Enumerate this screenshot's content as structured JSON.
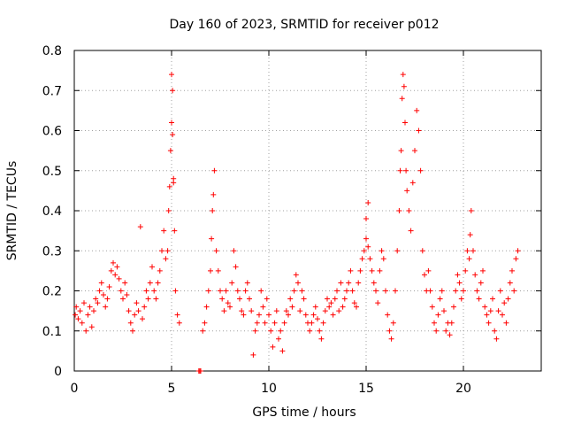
{
  "chart_data": {
    "type": "scatter",
    "title": "Day 160 of 2023, SRMTID for receiver p012",
    "xlabel": "GPS time / hours",
    "ylabel": "SRMTID / TECUs",
    "xlim": [
      0,
      24
    ],
    "ylim": [
      0,
      0.8
    ],
    "xticks": [
      0,
      5,
      10,
      15,
      20
    ],
    "xtick_labels": [
      "0",
      "5",
      "10",
      "15",
      "20"
    ],
    "yticks": [
      0,
      0.1,
      0.2,
      0.3,
      0.4,
      0.5,
      0.6,
      0.7,
      0.8
    ],
    "ytick_labels": [
      "0",
      "0.1",
      "0.2",
      "0.3",
      "0.4",
      "0.5",
      "0.6",
      "0.7",
      "0.8"
    ],
    "grid": true,
    "marker": "+",
    "color": "#ff0000",
    "x": [
      0.05,
      0.1,
      0.2,
      0.3,
      0.4,
      0.5,
      0.6,
      0.7,
      0.8,
      0.9,
      1.0,
      1.1,
      1.2,
      1.3,
      1.4,
      1.5,
      1.6,
      1.7,
      1.8,
      1.9,
      2.0,
      2.1,
      2.2,
      2.3,
      2.4,
      2.5,
      2.6,
      2.7,
      2.8,
      2.9,
      3.0,
      3.1,
      3.2,
      3.3,
      3.4,
      3.5,
      3.6,
      3.7,
      3.8,
      3.9,
      4.0,
      4.1,
      4.2,
      4.3,
      4.4,
      4.5,
      4.6,
      4.7,
      4.8,
      4.85,
      4.9,
      4.95,
      5.0,
      5.0,
      5.05,
      5.05,
      5.1,
      5.1,
      5.15,
      5.2,
      5.3,
      5.4,
      6.4,
      6.45,
      6.5,
      6.6,
      6.7,
      6.8,
      6.9,
      7.0,
      7.05,
      7.1,
      7.15,
      7.2,
      7.3,
      7.4,
      7.5,
      7.6,
      7.7,
      7.8,
      7.9,
      8.0,
      8.1,
      8.2,
      8.3,
      8.4,
      8.5,
      8.6,
      8.7,
      8.8,
      8.9,
      9.0,
      9.1,
      9.2,
      9.3,
      9.4,
      9.5,
      9.6,
      9.7,
      9.8,
      9.9,
      10.0,
      10.1,
      10.2,
      10.3,
      10.4,
      10.5,
      10.6,
      10.7,
      10.8,
      10.9,
      11.0,
      11.1,
      11.2,
      11.3,
      11.4,
      11.5,
      11.6,
      11.7,
      11.8,
      11.9,
      12.0,
      12.1,
      12.2,
      12.3,
      12.4,
      12.5,
      12.6,
      12.7,
      12.8,
      12.9,
      13.0,
      13.1,
      13.2,
      13.3,
      13.4,
      13.5,
      13.6,
      13.7,
      13.8,
      13.9,
      14.0,
      14.1,
      14.2,
      14.3,
      14.4,
      14.5,
      14.6,
      14.7,
      14.8,
      14.9,
      15.0,
      15.0,
      15.1,
      15.1,
      15.2,
      15.3,
      15.4,
      15.5,
      15.6,
      15.7,
      15.8,
      15.9,
      16.0,
      16.1,
      16.2,
      16.3,
      16.4,
      16.5,
      16.6,
      16.7,
      16.75,
      16.8,
      16.85,
      16.9,
      16.95,
      17.0,
      17.05,
      17.1,
      17.2,
      17.3,
      17.4,
      17.5,
      17.6,
      17.7,
      17.8,
      17.9,
      18.0,
      18.1,
      18.2,
      18.3,
      18.4,
      18.5,
      18.6,
      18.7,
      18.8,
      18.9,
      19.0,
      19.1,
      19.2,
      19.3,
      19.4,
      19.5,
      19.6,
      19.7,
      19.8,
      19.9,
      20.0,
      20.1,
      20.2,
      20.3,
      20.35,
      20.4,
      20.5,
      20.6,
      20.7,
      20.8,
      20.9,
      21.0,
      21.1,
      21.2,
      21.3,
      21.4,
      21.5,
      21.6,
      21.7,
      21.8,
      21.9,
      22.0,
      22.1,
      22.2,
      22.3,
      22.4,
      22.5,
      22.6,
      22.7,
      22.8
    ],
    "y": [
      0.14,
      0.16,
      0.13,
      0.15,
      0.12,
      0.17,
      0.1,
      0.14,
      0.16,
      0.11,
      0.15,
      0.18,
      0.17,
      0.2,
      0.22,
      0.19,
      0.16,
      0.18,
      0.21,
      0.25,
      0.27,
      0.24,
      0.26,
      0.23,
      0.2,
      0.18,
      0.22,
      0.19,
      0.15,
      0.12,
      0.1,
      0.14,
      0.17,
      0.15,
      0.36,
      0.13,
      0.16,
      0.2,
      0.18,
      0.22,
      0.26,
      0.2,
      0.18,
      0.22,
      0.25,
      0.3,
      0.35,
      0.28,
      0.3,
      0.4,
      0.46,
      0.55,
      0.62,
      0.74,
      0.7,
      0.59,
      0.47,
      0.48,
      0.35,
      0.2,
      0.14,
      0.12,
      0.0,
      0.0,
      0.0,
      0.1,
      0.12,
      0.16,
      0.2,
      0.25,
      0.33,
      0.4,
      0.44,
      0.5,
      0.3,
      0.25,
      0.2,
      0.18,
      0.15,
      0.2,
      0.17,
      0.16,
      0.22,
      0.3,
      0.26,
      0.2,
      0.18,
      0.15,
      0.14,
      0.2,
      0.22,
      0.18,
      0.15,
      0.04,
      0.1,
      0.12,
      0.14,
      0.2,
      0.16,
      0.12,
      0.18,
      0.14,
      0.1,
      0.06,
      0.12,
      0.15,
      0.08,
      0.1,
      0.05,
      0.12,
      0.15,
      0.14,
      0.18,
      0.16,
      0.2,
      0.24,
      0.22,
      0.15,
      0.2,
      0.18,
      0.14,
      0.12,
      0.1,
      0.12,
      0.14,
      0.16,
      0.13,
      0.1,
      0.08,
      0.12,
      0.15,
      0.18,
      0.16,
      0.17,
      0.14,
      0.18,
      0.2,
      0.15,
      0.22,
      0.16,
      0.18,
      0.2,
      0.22,
      0.25,
      0.2,
      0.17,
      0.16,
      0.22,
      0.25,
      0.28,
      0.3,
      0.33,
      0.38,
      0.42,
      0.31,
      0.28,
      0.25,
      0.22,
      0.2,
      0.17,
      0.25,
      0.3,
      0.28,
      0.2,
      0.14,
      0.1,
      0.08,
      0.12,
      0.2,
      0.3,
      0.4,
      0.5,
      0.55,
      0.68,
      0.74,
      0.71,
      0.62,
      0.5,
      0.45,
      0.4,
      0.35,
      0.47,
      0.55,
      0.65,
      0.6,
      0.5,
      0.3,
      0.24,
      0.2,
      0.25,
      0.2,
      0.16,
      0.12,
      0.1,
      0.14,
      0.18,
      0.2,
      0.15,
      0.1,
      0.12,
      0.09,
      0.12,
      0.16,
      0.2,
      0.24,
      0.22,
      0.18,
      0.2,
      0.25,
      0.3,
      0.28,
      0.34,
      0.4,
      0.3,
      0.24,
      0.2,
      0.18,
      0.22,
      0.25,
      0.16,
      0.14,
      0.12,
      0.15,
      0.18,
      0.1,
      0.08,
      0.15,
      0.2,
      0.14,
      0.17,
      0.12,
      0.18,
      0.22,
      0.25,
      0.2,
      0.28,
      0.3
    ]
  }
}
